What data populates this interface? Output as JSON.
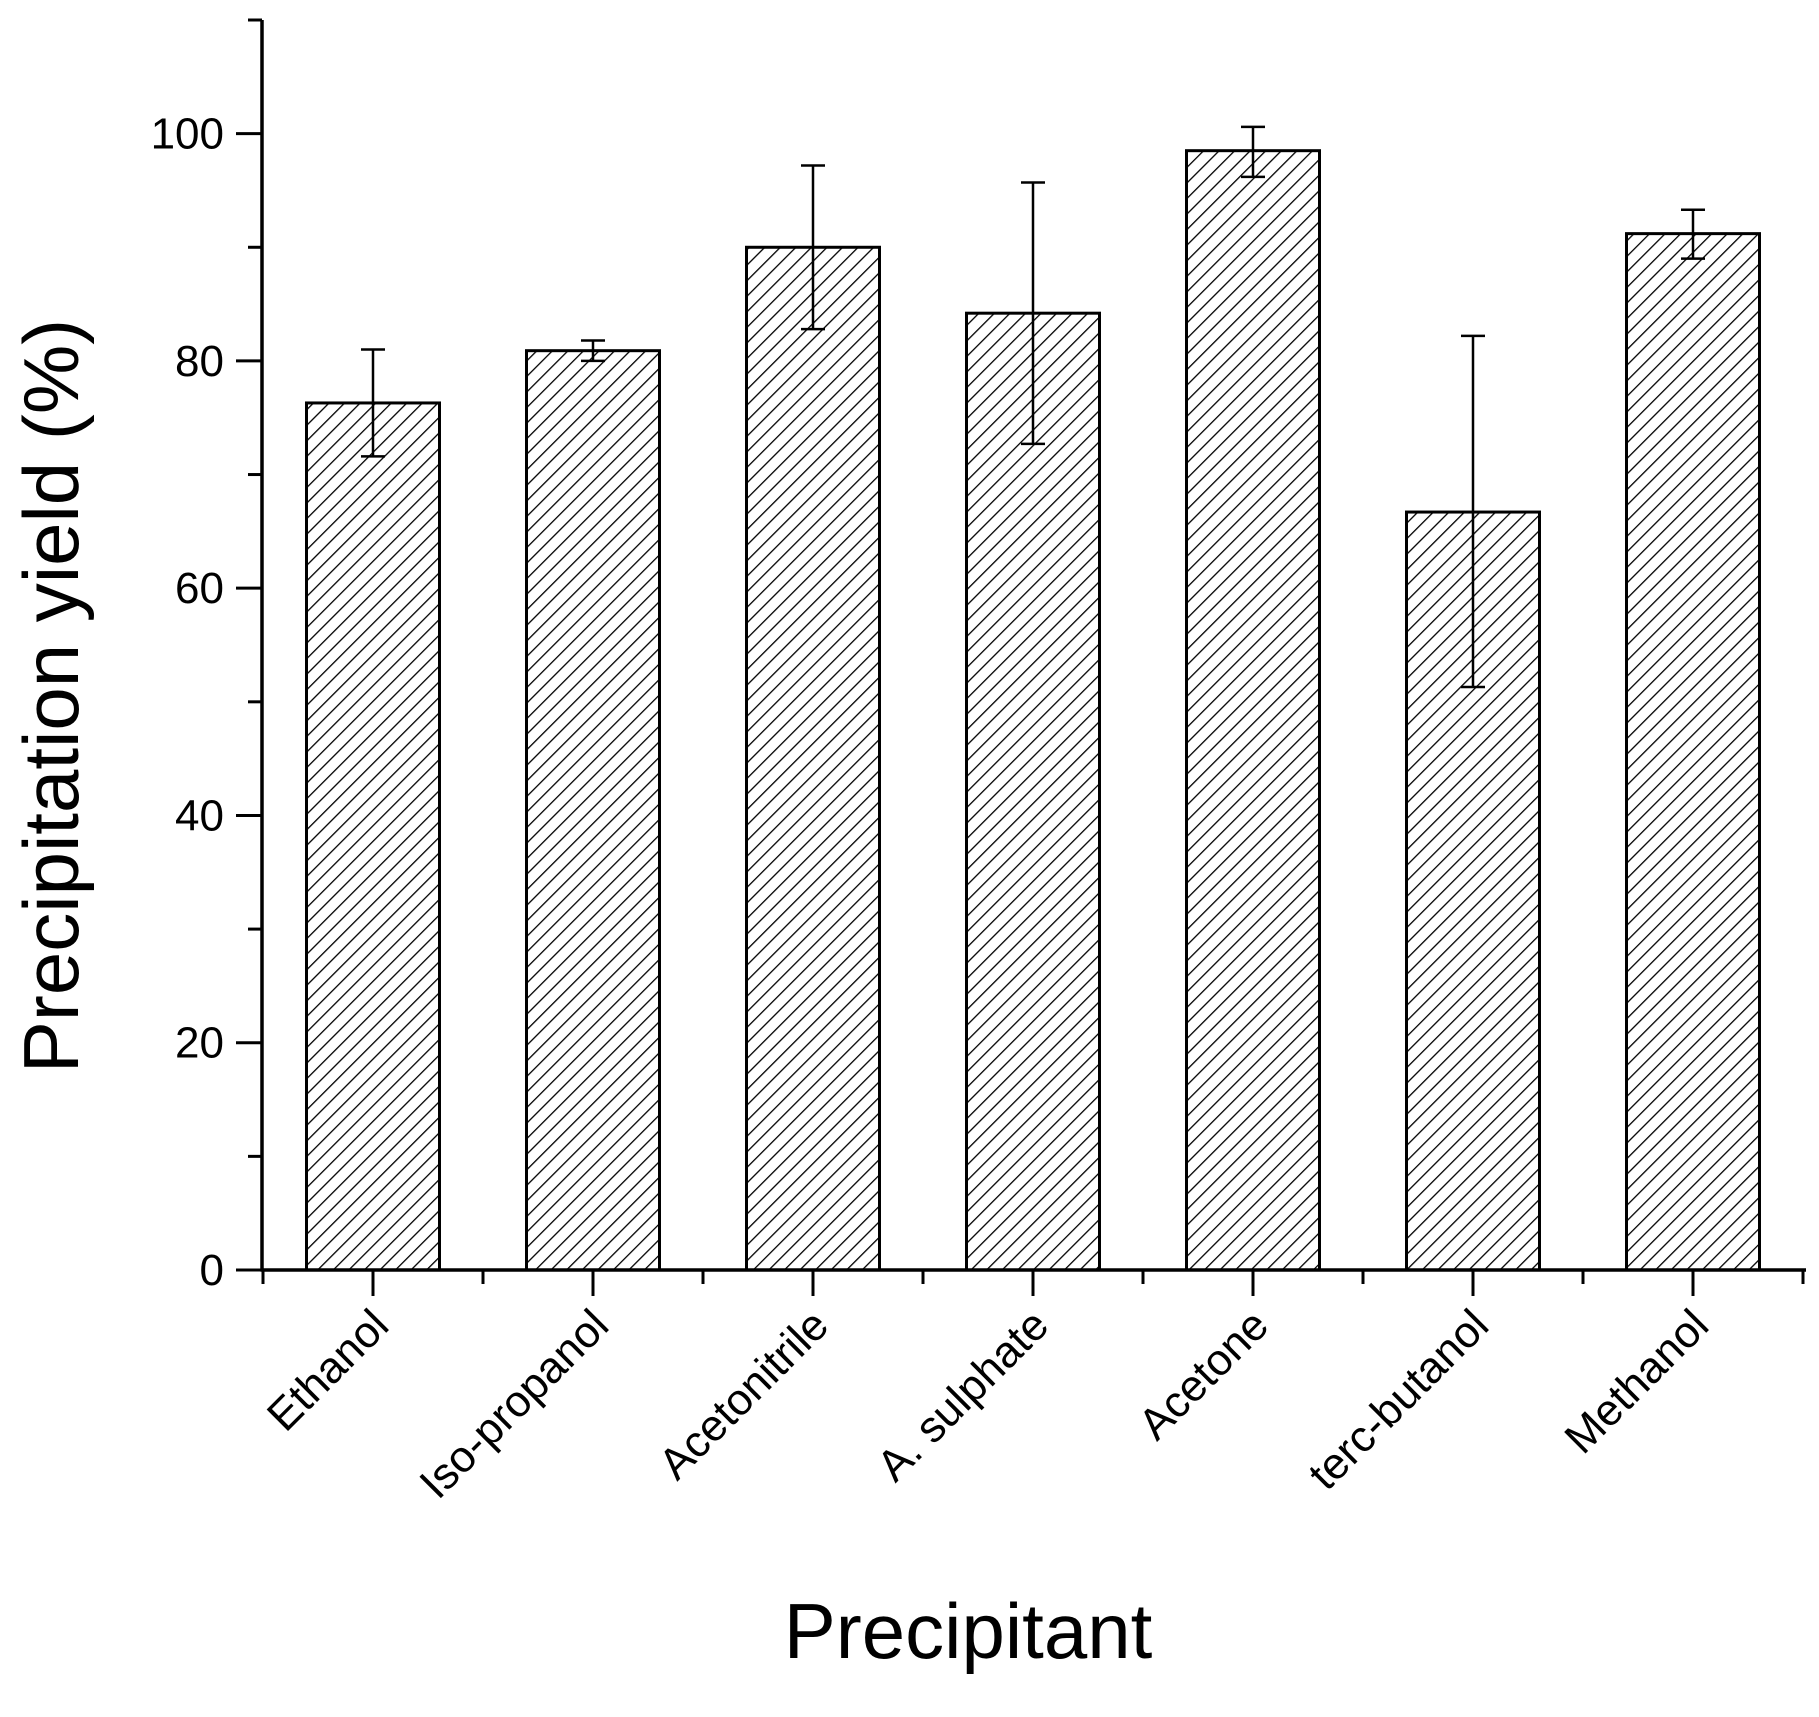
{
  "chart_data": {
    "type": "bar",
    "title": "",
    "xlabel": "Precipitant",
    "ylabel": "Precipitation yield (%)",
    "categories": [
      "Ethanol",
      "Iso-propanol",
      "Acetonitrile",
      "A. sulphate",
      "Acetone",
      "terc-butanol",
      "Methanol"
    ],
    "values": [
      76.3,
      80.9,
      90.0,
      84.2,
      98.5,
      66.7,
      91.2
    ],
    "error_high": [
      81.0,
      81.8,
      97.2,
      95.7,
      100.6,
      82.2,
      93.3
    ],
    "error_low": [
      71.6,
      80.0,
      82.8,
      72.7,
      96.2,
      51.3,
      89.0
    ],
    "ylim": [
      0,
      110
    ],
    "yticks": [
      0,
      20,
      40,
      60,
      80,
      100
    ],
    "yminor_ticks": [
      10,
      30,
      50,
      70,
      90,
      110
    ],
    "grid": false,
    "bar_fill": "hatched",
    "colors": {
      "bar_stroke": "#000000",
      "hatch": "#000000",
      "background": "#ffffff"
    }
  }
}
